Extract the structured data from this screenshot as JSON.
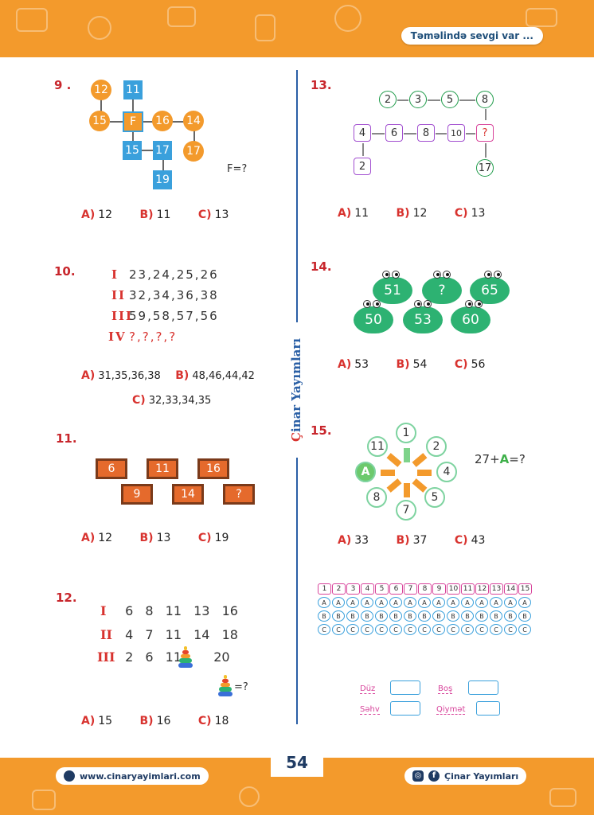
{
  "header": {
    "motto": "Təməlində sevgi var ..."
  },
  "vertical_brand": {
    "first": "Ç",
    "rest": "inar Yayımları"
  },
  "q9": {
    "num": "9 .",
    "nodes": {
      "a": "12",
      "b": "11",
      "c": "15",
      "f": "F",
      "d": "16",
      "e": "14",
      "g": "15",
      "h": "17",
      "i": "17",
      "j": "19"
    },
    "question": "F=?",
    "options": [
      {
        "l": "A)",
        "v": "12"
      },
      {
        "l": "B)",
        "v": "11"
      },
      {
        "l": "C)",
        "v": "13"
      }
    ]
  },
  "q10": {
    "num": "10.",
    "rows": [
      {
        "r": "I",
        "v": "23,24,25,26"
      },
      {
        "r": "II",
        "v": "32,34,36,38"
      },
      {
        "r": "III",
        "v": "59,58,57,56"
      },
      {
        "r": "IV",
        "v": "?,?,?,?"
      }
    ],
    "options": [
      {
        "l": "A)",
        "v": "31,35,36,38"
      },
      {
        "l": "B)",
        "v": "48,46,44,42"
      },
      {
        "l": "C)",
        "v": "32,33,34,35"
      }
    ]
  },
  "q11": {
    "num": "11.",
    "boards": [
      "6",
      "11",
      "16",
      "9",
      "14",
      "?"
    ],
    "options": [
      {
        "l": "A)",
        "v": "12"
      },
      {
        "l": "B)",
        "v": "13"
      },
      {
        "l": "C)",
        "v": "19"
      }
    ]
  },
  "q12": {
    "num": "12.",
    "rows": [
      {
        "r": "I",
        "v": [
          "6",
          "8",
          "11",
          "13",
          "16"
        ]
      },
      {
        "r": "II",
        "v": [
          "4",
          "7",
          "11",
          "14",
          "18"
        ]
      },
      {
        "r": "III",
        "v": [
          "2",
          "6",
          "11",
          "20"
        ]
      }
    ],
    "question": "=?",
    "options": [
      {
        "l": "A)",
        "v": "15"
      },
      {
        "l": "B)",
        "v": "16"
      },
      {
        "l": "C)",
        "v": "18"
      }
    ]
  },
  "q13": {
    "num": "13.",
    "top": [
      "2",
      "3",
      "5",
      "8"
    ],
    "mid": [
      "4",
      "6",
      "8",
      "10",
      "?"
    ],
    "start": "2",
    "end": "17",
    "options": [
      {
        "l": "A)",
        "v": "11"
      },
      {
        "l": "B)",
        "v": "12"
      },
      {
        "l": "C)",
        "v": "13"
      }
    ]
  },
  "q14": {
    "num": "14.",
    "frogs": [
      "51",
      "?",
      "65",
      "50",
      "53",
      "60"
    ],
    "options": [
      {
        "l": "A)",
        "v": "53"
      },
      {
        "l": "B)",
        "v": "54"
      },
      {
        "l": "C)",
        "v": "56"
      }
    ]
  },
  "q15": {
    "num": "15.",
    "wheel": [
      "1",
      "2",
      "4",
      "5",
      "7",
      "8",
      "A",
      "11"
    ],
    "question_prefix": "27+",
    "question_symbol": "A",
    "question_suffix": "=?",
    "options": [
      {
        "l": "A)",
        "v": "33"
      },
      {
        "l": "B)",
        "v": "37"
      },
      {
        "l": "C)",
        "v": "43"
      }
    ]
  },
  "answer_grid": {
    "numbers": [
      "1",
      "2",
      "3",
      "4",
      "5",
      "6",
      "7",
      "8",
      "9",
      "10",
      "11",
      "12",
      "13",
      "14",
      "15"
    ],
    "letters": [
      "A",
      "B",
      "C"
    ]
  },
  "score": {
    "duz": "Düz",
    "bos": "Boş",
    "sehv": "Səhv",
    "qiymet": "Qiymət"
  },
  "footer": {
    "page": "54",
    "website": "www.cinaryayimlari.com",
    "brand": "Çinar Yayımları"
  },
  "colors": {
    "orange": "#f39a2c",
    "blue": "#3aa0dc",
    "red": "#d8332f",
    "green": "#2db272"
  }
}
